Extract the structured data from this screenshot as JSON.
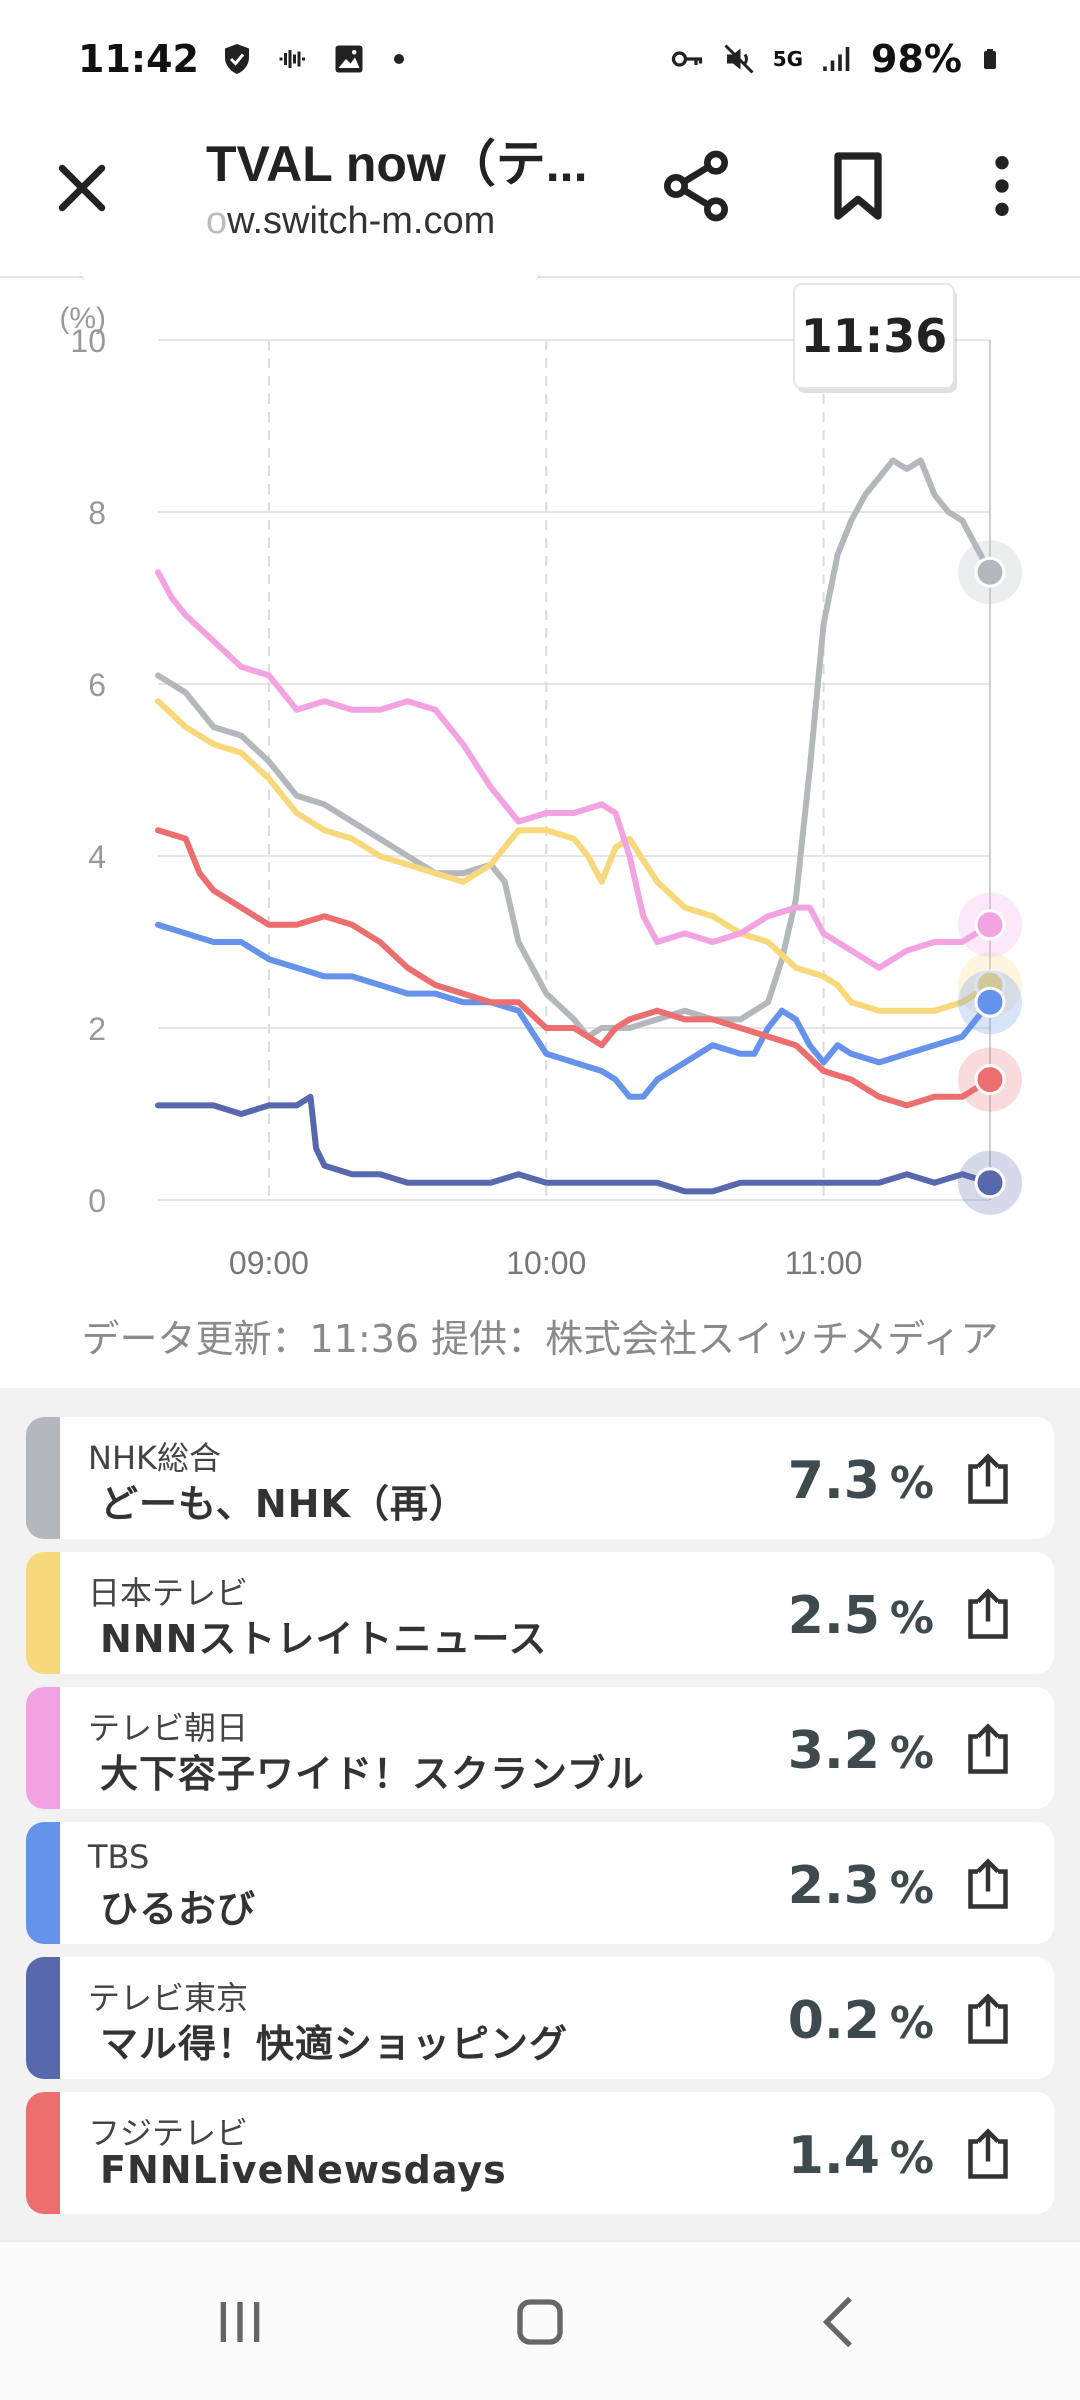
{
  "status_bar": {
    "time": "11:42",
    "battery": "98%",
    "network": "5G"
  },
  "app_bar": {
    "title": "TVAL now（テ...",
    "url_prefix": "o",
    "url": "w.switch-m.com"
  },
  "chart_data": {
    "type": "line",
    "ylabel": "(%)",
    "ylim": [
      0,
      10
    ],
    "y_ticks": [
      "0",
      "2",
      "4",
      "6",
      "8",
      "10"
    ],
    "x_ticks": [
      "09:00",
      "10:00",
      "11:00"
    ],
    "x_tick_hours": [
      9,
      10,
      11
    ],
    "xlim": [
      8.6,
      11.6
    ],
    "tooltip_time": "11:36",
    "series": [
      {
        "color": "#b4b8bd",
        "points": [
          [
            8.6,
            6.1
          ],
          [
            8.7,
            5.9
          ],
          [
            8.8,
            5.5
          ],
          [
            8.9,
            5.4
          ],
          [
            9.0,
            5.1
          ],
          [
            9.1,
            4.7
          ],
          [
            9.2,
            4.6
          ],
          [
            9.3,
            4.4
          ],
          [
            9.4,
            4.2
          ],
          [
            9.5,
            4.0
          ],
          [
            9.6,
            3.8
          ],
          [
            9.7,
            3.8
          ],
          [
            9.8,
            3.9
          ],
          [
            9.85,
            3.7
          ],
          [
            9.9,
            3.0
          ],
          [
            9.95,
            2.7
          ],
          [
            10.0,
            2.4
          ],
          [
            10.1,
            2.1
          ],
          [
            10.15,
            1.9
          ],
          [
            10.2,
            2.0
          ],
          [
            10.3,
            2.0
          ],
          [
            10.4,
            2.1
          ],
          [
            10.5,
            2.2
          ],
          [
            10.6,
            2.1
          ],
          [
            10.7,
            2.1
          ],
          [
            10.8,
            2.3
          ],
          [
            10.85,
            2.8
          ],
          [
            10.9,
            3.5
          ],
          [
            10.95,
            5.0
          ],
          [
            11.0,
            6.7
          ],
          [
            11.05,
            7.5
          ],
          [
            11.1,
            7.9
          ],
          [
            11.15,
            8.2
          ],
          [
            11.2,
            8.4
          ],
          [
            11.25,
            8.6
          ],
          [
            11.3,
            8.5
          ],
          [
            11.35,
            8.6
          ],
          [
            11.4,
            8.2
          ],
          [
            11.45,
            8.0
          ],
          [
            11.5,
            7.9
          ],
          [
            11.55,
            7.6
          ],
          [
            11.6,
            7.3
          ]
        ]
      },
      {
        "color": "#f7d87a",
        "points": [
          [
            8.6,
            5.8
          ],
          [
            8.7,
            5.5
          ],
          [
            8.8,
            5.3
          ],
          [
            8.9,
            5.2
          ],
          [
            9.0,
            4.9
          ],
          [
            9.1,
            4.5
          ],
          [
            9.2,
            4.3
          ],
          [
            9.3,
            4.2
          ],
          [
            9.4,
            4.0
          ],
          [
            9.5,
            3.9
          ],
          [
            9.6,
            3.8
          ],
          [
            9.7,
            3.7
          ],
          [
            9.8,
            3.9
          ],
          [
            9.9,
            4.3
          ],
          [
            10.0,
            4.3
          ],
          [
            10.1,
            4.2
          ],
          [
            10.15,
            4.0
          ],
          [
            10.2,
            3.7
          ],
          [
            10.25,
            4.1
          ],
          [
            10.3,
            4.2
          ],
          [
            10.4,
            3.7
          ],
          [
            10.5,
            3.4
          ],
          [
            10.6,
            3.3
          ],
          [
            10.7,
            3.1
          ],
          [
            10.8,
            3.0
          ],
          [
            10.9,
            2.7
          ],
          [
            11.0,
            2.6
          ],
          [
            11.05,
            2.5
          ],
          [
            11.1,
            2.3
          ],
          [
            11.2,
            2.2
          ],
          [
            11.3,
            2.2
          ],
          [
            11.4,
            2.2
          ],
          [
            11.5,
            2.3
          ],
          [
            11.6,
            2.5
          ]
        ]
      },
      {
        "color": "#f3a2e2",
        "points": [
          [
            8.6,
            7.3
          ],
          [
            8.65,
            7.0
          ],
          [
            8.7,
            6.8
          ],
          [
            8.8,
            6.5
          ],
          [
            8.9,
            6.2
          ],
          [
            9.0,
            6.1
          ],
          [
            9.1,
            5.7
          ],
          [
            9.2,
            5.8
          ],
          [
            9.3,
            5.7
          ],
          [
            9.4,
            5.7
          ],
          [
            9.5,
            5.8
          ],
          [
            9.6,
            5.7
          ],
          [
            9.7,
            5.3
          ],
          [
            9.8,
            4.8
          ],
          [
            9.9,
            4.4
          ],
          [
            10.0,
            4.5
          ],
          [
            10.1,
            4.5
          ],
          [
            10.2,
            4.6
          ],
          [
            10.25,
            4.5
          ],
          [
            10.3,
            4.0
          ],
          [
            10.35,
            3.3
          ],
          [
            10.4,
            3.0
          ],
          [
            10.5,
            3.1
          ],
          [
            10.6,
            3.0
          ],
          [
            10.7,
            3.1
          ],
          [
            10.8,
            3.3
          ],
          [
            10.9,
            3.4
          ],
          [
            10.95,
            3.4
          ],
          [
            11.0,
            3.1
          ],
          [
            11.1,
            2.9
          ],
          [
            11.2,
            2.7
          ],
          [
            11.3,
            2.9
          ],
          [
            11.4,
            3.0
          ],
          [
            11.5,
            3.0
          ],
          [
            11.6,
            3.2
          ]
        ]
      },
      {
        "color": "#6592ea",
        "points": [
          [
            8.6,
            3.2
          ],
          [
            8.7,
            3.1
          ],
          [
            8.8,
            3.0
          ],
          [
            8.9,
            3.0
          ],
          [
            9.0,
            2.8
          ],
          [
            9.1,
            2.7
          ],
          [
            9.2,
            2.6
          ],
          [
            9.3,
            2.6
          ],
          [
            9.4,
            2.5
          ],
          [
            9.5,
            2.4
          ],
          [
            9.6,
            2.4
          ],
          [
            9.7,
            2.3
          ],
          [
            9.8,
            2.3
          ],
          [
            9.9,
            2.2
          ],
          [
            10.0,
            1.7
          ],
          [
            10.1,
            1.6
          ],
          [
            10.2,
            1.5
          ],
          [
            10.25,
            1.4
          ],
          [
            10.3,
            1.2
          ],
          [
            10.35,
            1.2
          ],
          [
            10.4,
            1.4
          ],
          [
            10.5,
            1.6
          ],
          [
            10.6,
            1.8
          ],
          [
            10.7,
            1.7
          ],
          [
            10.75,
            1.7
          ],
          [
            10.8,
            2.0
          ],
          [
            10.85,
            2.2
          ],
          [
            10.9,
            2.1
          ],
          [
            10.95,
            1.8
          ],
          [
            11.0,
            1.6
          ],
          [
            11.05,
            1.8
          ],
          [
            11.1,
            1.7
          ],
          [
            11.2,
            1.6
          ],
          [
            11.3,
            1.7
          ],
          [
            11.4,
            1.8
          ],
          [
            11.5,
            1.9
          ],
          [
            11.6,
            2.3
          ]
        ]
      },
      {
        "color": "#5868ad",
        "points": [
          [
            8.6,
            1.1
          ],
          [
            8.7,
            1.1
          ],
          [
            8.8,
            1.1
          ],
          [
            8.9,
            1.0
          ],
          [
            9.0,
            1.1
          ],
          [
            9.1,
            1.1
          ],
          [
            9.15,
            1.2
          ],
          [
            9.17,
            0.6
          ],
          [
            9.2,
            0.4
          ],
          [
            9.3,
            0.3
          ],
          [
            9.4,
            0.3
          ],
          [
            9.5,
            0.2
          ],
          [
            9.6,
            0.2
          ],
          [
            9.7,
            0.2
          ],
          [
            9.8,
            0.2
          ],
          [
            9.9,
            0.3
          ],
          [
            10.0,
            0.2
          ],
          [
            10.1,
            0.2
          ],
          [
            10.2,
            0.2
          ],
          [
            10.3,
            0.2
          ],
          [
            10.4,
            0.2
          ],
          [
            10.5,
            0.1
          ],
          [
            10.6,
            0.1
          ],
          [
            10.7,
            0.2
          ],
          [
            10.8,
            0.2
          ],
          [
            10.9,
            0.2
          ],
          [
            11.0,
            0.2
          ],
          [
            11.1,
            0.2
          ],
          [
            11.2,
            0.2
          ],
          [
            11.3,
            0.3
          ],
          [
            11.4,
            0.2
          ],
          [
            11.5,
            0.3
          ],
          [
            11.6,
            0.2
          ]
        ]
      },
      {
        "color": "#ec6e6e",
        "points": [
          [
            8.6,
            4.3
          ],
          [
            8.7,
            4.2
          ],
          [
            8.75,
            3.8
          ],
          [
            8.8,
            3.6
          ],
          [
            8.9,
            3.4
          ],
          [
            9.0,
            3.2
          ],
          [
            9.1,
            3.2
          ],
          [
            9.2,
            3.3
          ],
          [
            9.3,
            3.2
          ],
          [
            9.4,
            3.0
          ],
          [
            9.5,
            2.7
          ],
          [
            9.6,
            2.5
          ],
          [
            9.7,
            2.4
          ],
          [
            9.8,
            2.3
          ],
          [
            9.9,
            2.3
          ],
          [
            10.0,
            2.0
          ],
          [
            10.1,
            2.0
          ],
          [
            10.15,
            1.9
          ],
          [
            10.2,
            1.8
          ],
          [
            10.25,
            2.0
          ],
          [
            10.3,
            2.1
          ],
          [
            10.4,
            2.2
          ],
          [
            10.5,
            2.1
          ],
          [
            10.6,
            2.1
          ],
          [
            10.7,
            2.0
          ],
          [
            10.8,
            1.9
          ],
          [
            10.9,
            1.8
          ],
          [
            11.0,
            1.5
          ],
          [
            11.1,
            1.4
          ],
          [
            11.2,
            1.2
          ],
          [
            11.3,
            1.1
          ],
          [
            11.4,
            1.2
          ],
          [
            11.5,
            1.2
          ],
          [
            11.6,
            1.4
          ]
        ]
      }
    ]
  },
  "source_text": "データ更新：11:36  提供：株式会社スイッチメディア",
  "channels": [
    {
      "channel": "NHK総合",
      "program": "どーも、NHK（再）",
      "value": "7.3",
      "unit": "%",
      "color": "#b4b8bd"
    },
    {
      "channel": "日本テレビ",
      "program": "NNNストレイトニュース",
      "value": "2.5",
      "unit": "%",
      "color": "#f7d87a"
    },
    {
      "channel": "テレビ朝日",
      "program": "大下容子ワイド！スクランブル",
      "value": "3.2",
      "unit": "%",
      "color": "#f3a2e2"
    },
    {
      "channel": "TBS",
      "program": "ひるおび",
      "value": "2.3",
      "unit": "%",
      "color": "#6592ea"
    },
    {
      "channel": "テレビ東京",
      "program": "マル得！快適ショッピング",
      "value": "0.2",
      "unit": "%",
      "color": "#5868ad"
    },
    {
      "channel": "フジテレビ",
      "program": "FNNLiveNewsdays",
      "value": "1.4",
      "unit": "%",
      "color": "#ec6e6e"
    }
  ]
}
